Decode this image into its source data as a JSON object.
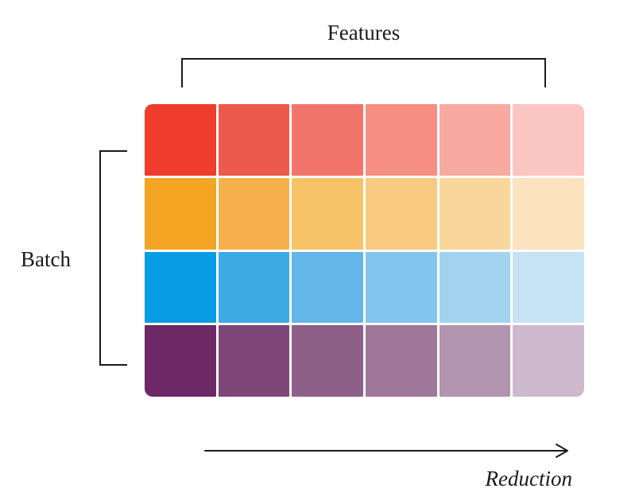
{
  "labels": {
    "features": "Features",
    "batch": "Batch",
    "reduction": "Reduction"
  },
  "grid": {
    "rows": 4,
    "cols": 6,
    "row_names": [
      "red",
      "orange",
      "blue",
      "purple"
    ],
    "colors": [
      [
        "#EE3D2B",
        "#EC5A4B",
        "#F2756B",
        "#F58E83",
        "#F8AAA1",
        "#FBC5C2"
      ],
      [
        "#F4A423",
        "#F5B04C",
        "#F7C268",
        "#F8CA80",
        "#F9D79C",
        "#FBE3C0"
      ],
      [
        "#069DE6",
        "#3DA9E5",
        "#62B6E8",
        "#82C6ED",
        "#A1D3EF",
        "#C8E2F5"
      ],
      [
        "#6C2965",
        "#7D4578",
        "#8E6089",
        "#9F7899",
        "#B394AF",
        "#CDB9CD"
      ]
    ]
  },
  "arrow": {
    "direction": "right"
  },
  "style": {
    "line_color": "#1a1a1a",
    "text_color": "#1a1a1a",
    "background": "#ffffff"
  }
}
